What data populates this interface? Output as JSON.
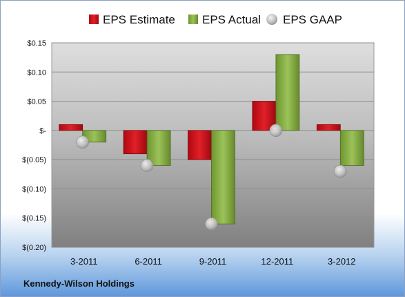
{
  "company": "Kennedy-Wilson Holdings",
  "colors": {
    "estimate": "#d0101a",
    "actual": "#8cb04a",
    "gaap": "#c0c0c0"
  },
  "chart_data": {
    "type": "bar",
    "categories": [
      "3-2011",
      "6-2011",
      "9-2011",
      "12-2011",
      "3-2012"
    ],
    "series": [
      {
        "name": "EPS Estimate",
        "kind": "bar",
        "values": [
          0.01,
          -0.04,
          -0.05,
          0.05,
          0.01
        ]
      },
      {
        "name": "EPS Actual",
        "kind": "bar",
        "values": [
          -0.02,
          -0.06,
          -0.16,
          0.13,
          -0.06
        ]
      },
      {
        "name": "EPS GAAP",
        "kind": "marker",
        "values": [
          -0.02,
          -0.06,
          -0.16,
          0.0,
          -0.07
        ]
      }
    ],
    "ylim": [
      -0.2,
      0.15
    ],
    "yticks": [
      0.15,
      0.1,
      0.05,
      0,
      -0.05,
      -0.1,
      -0.15,
      -0.2
    ],
    "ytick_labels": [
      "$0.15",
      "$0.10",
      "$0.05",
      "$-",
      "$(0.05)",
      "$(0.10)",
      "$(0.15)",
      "$(0.20)"
    ],
    "grid": true,
    "legend_position": "top"
  }
}
